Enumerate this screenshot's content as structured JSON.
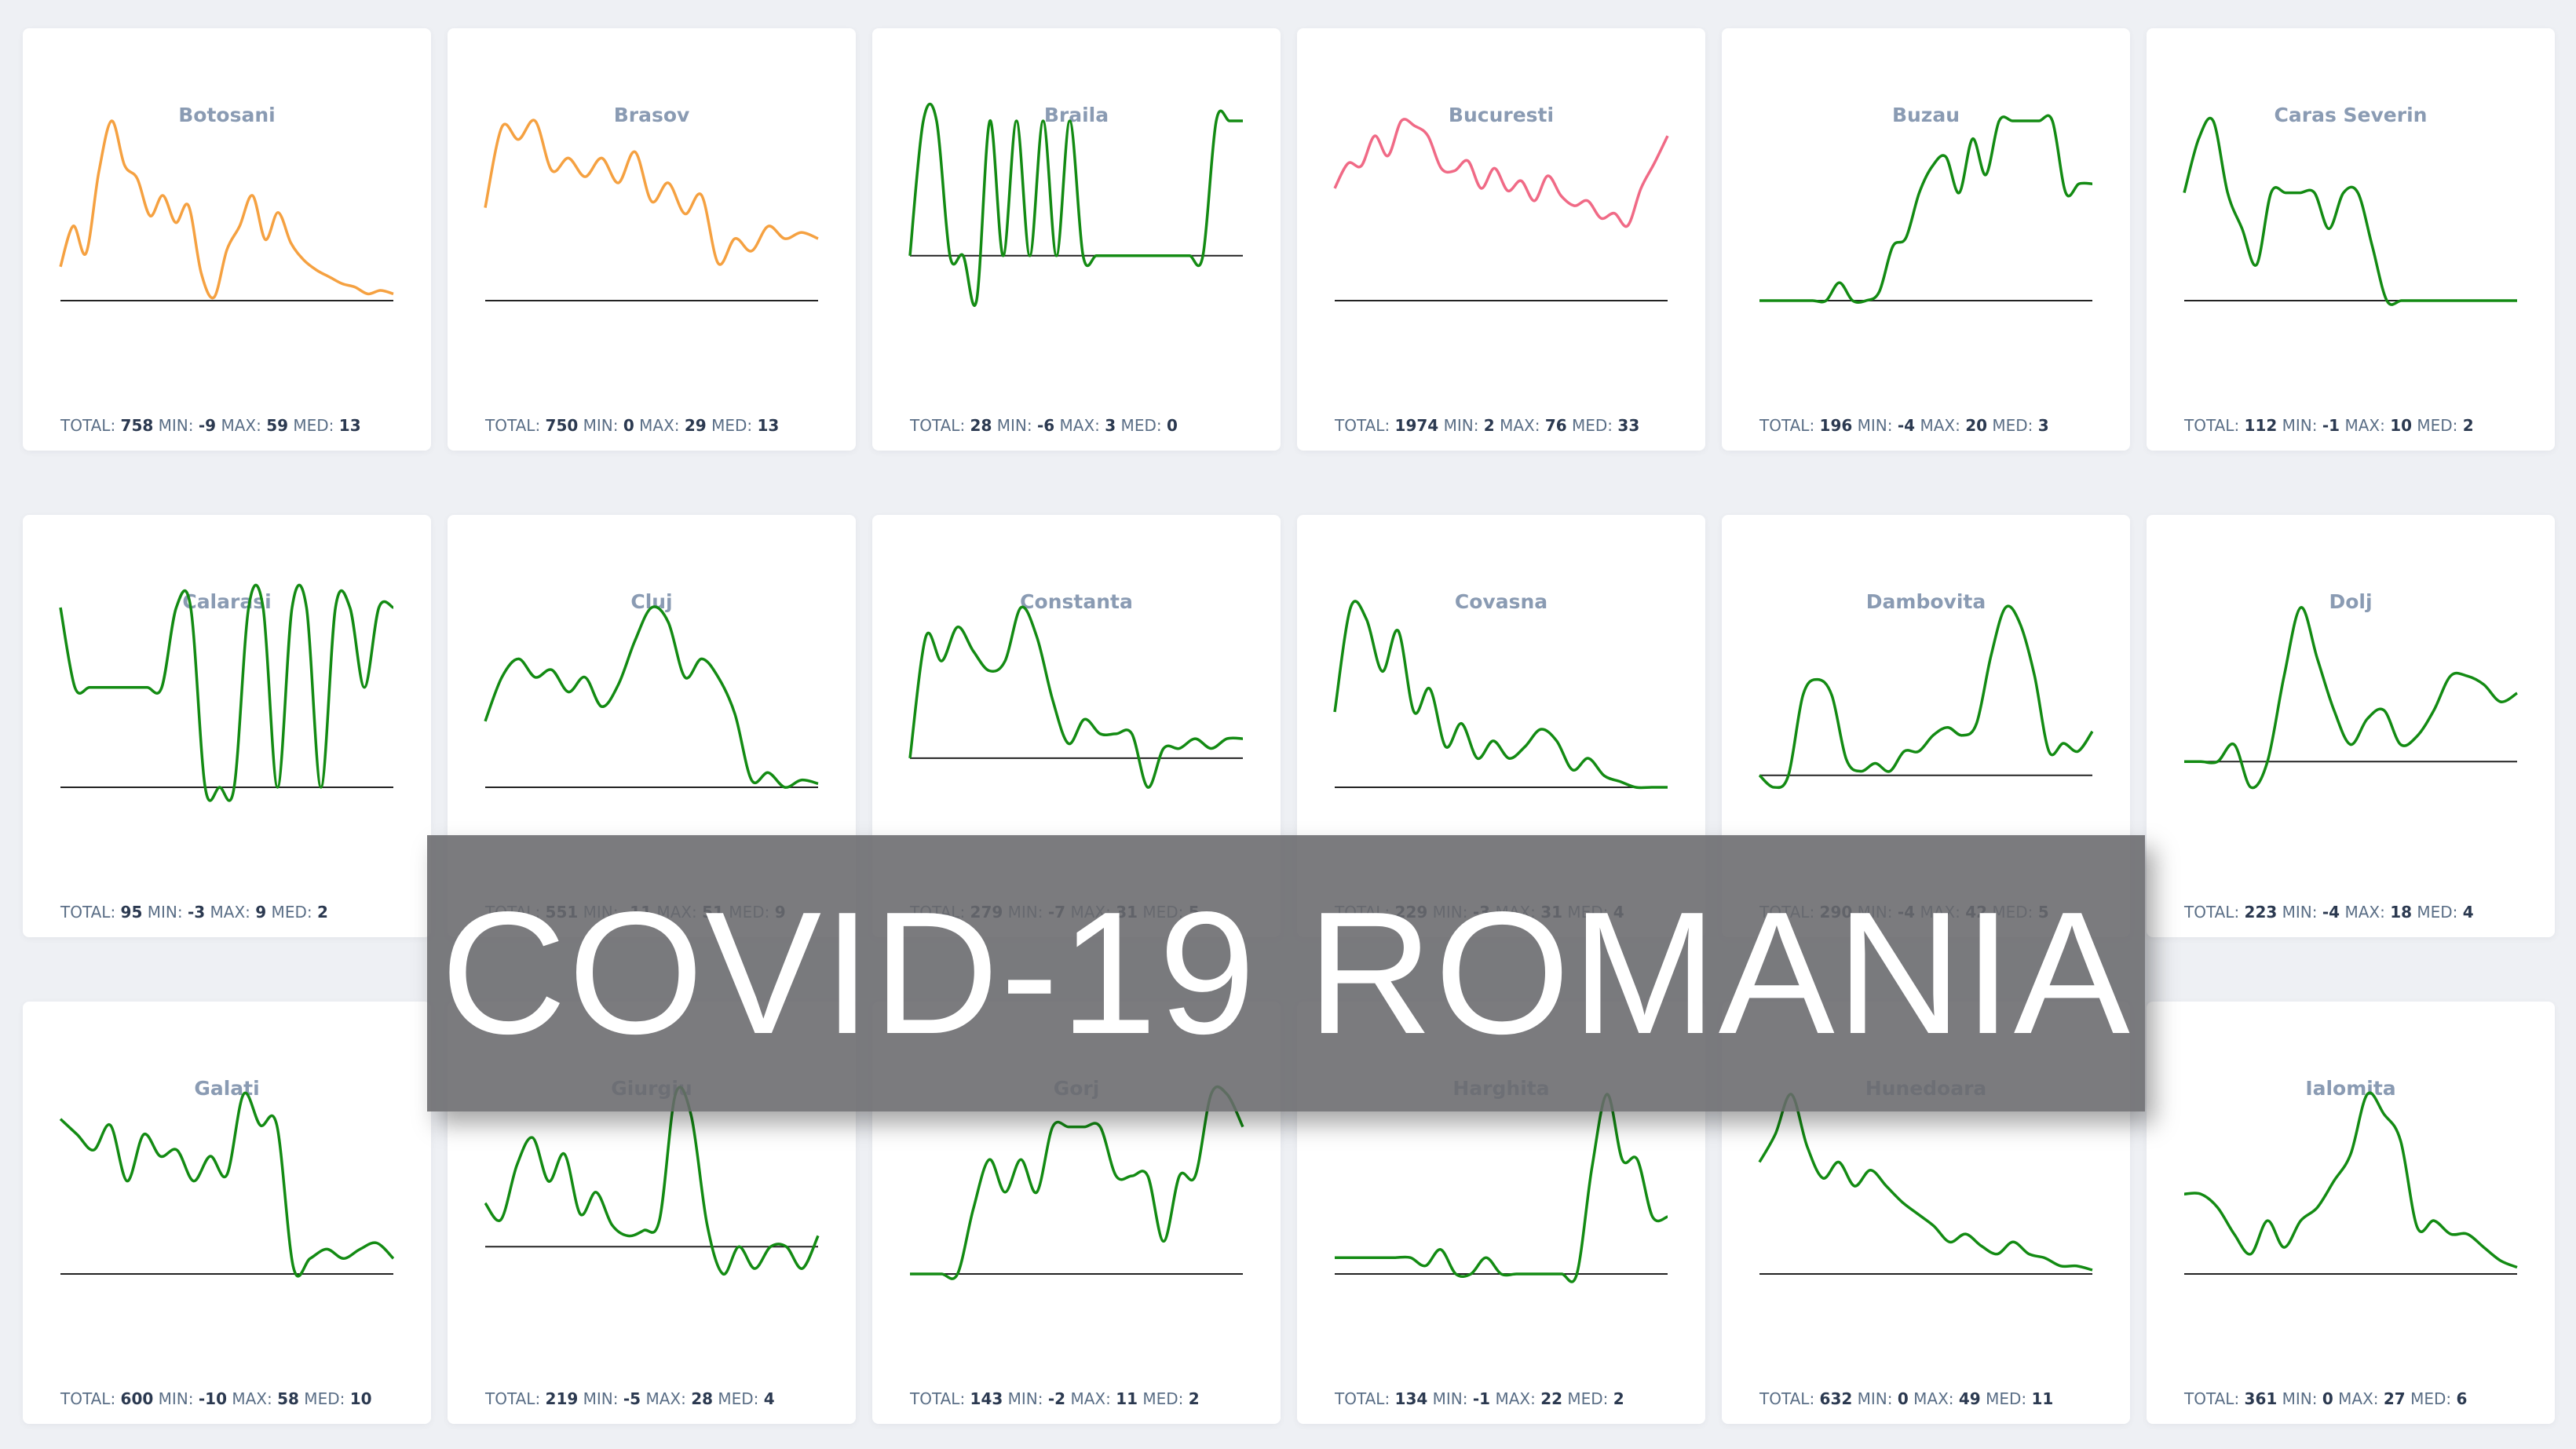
{
  "banner": {
    "text": "COVID-19 ROMANIA"
  },
  "labels": {
    "total": "TOTAL:",
    "min": "MIN:",
    "max": "MAX:",
    "med": "MED:"
  },
  "colors": {
    "orange": "#f5a141",
    "pink": "#f06a86",
    "green": "#138b13",
    "baseline": "#222222",
    "title": "#8a9bb3"
  },
  "chart_data": [
    {
      "type": "line",
      "title": "Botosani",
      "color": "orange",
      "stats": {
        "total": 758,
        "min": -9,
        "max": 59,
        "med": 13
      },
      "values": [
        10,
        22,
        14,
        38,
        53,
        40,
        36,
        25,
        31,
        23,
        28,
        8,
        1,
        15,
        22,
        31,
        18,
        26,
        17,
        12,
        9,
        7,
        5,
        4,
        2,
        3,
        2
      ]
    },
    {
      "type": "line",
      "title": "Brasov",
      "color": "orange",
      "stats": {
        "total": 750,
        "min": 0,
        "max": 29,
        "med": 13
      },
      "values": [
        15,
        28,
        26,
        29,
        21,
        23,
        20,
        23,
        19,
        24,
        16,
        19,
        14,
        17,
        6,
        10,
        8,
        12,
        10,
        11,
        10
      ]
    },
    {
      "type": "line",
      "title": "Braila",
      "color": "green",
      "stats": {
        "total": 28,
        "min": -6,
        "max": 3,
        "med": 0
      },
      "values": [
        0,
        3,
        3,
        0,
        0,
        -1,
        3,
        0,
        3,
        0,
        3,
        0,
        3,
        0,
        0,
        0,
        0,
        0,
        0,
        0,
        0,
        0,
        0,
        3,
        3,
        3
      ]
    },
    {
      "type": "line",
      "title": "Bucuresti",
      "color": "pink",
      "stats": {
        "total": 1974,
        "min": 2,
        "max": 76,
        "med": 33
      },
      "values": [
        45,
        55,
        54,
        66,
        58,
        72,
        70,
        66,
        53,
        52,
        56,
        45,
        53,
        44,
        48,
        40,
        50,
        42,
        38,
        40,
        33,
        35,
        30,
        45,
        55,
        66
      ]
    },
    {
      "type": "line",
      "title": "Buzau",
      "color": "green",
      "stats": {
        "total": 196,
        "min": -4,
        "max": 20,
        "med": 3
      },
      "values": [
        0,
        0,
        0,
        0,
        0,
        0,
        2,
        0,
        0,
        1,
        6,
        7,
        12,
        15,
        16,
        12,
        18,
        14,
        20,
        20,
        20,
        20,
        20,
        12,
        13,
        13
      ]
    },
    {
      "type": "line",
      "title": "Caras Severin",
      "color": "green",
      "stats": {
        "total": 112,
        "min": -1,
        "max": 10,
        "med": 2
      },
      "values": [
        6,
        9,
        10,
        6,
        4,
        2,
        6,
        6,
        6,
        6,
        4,
        6,
        6,
        3,
        0,
        0,
        0,
        0,
        0,
        0,
        0,
        0,
        0,
        0
      ]
    },
    {
      "type": "line",
      "title": "Calarasi",
      "color": "green",
      "stats": {
        "total": 95,
        "min": -3,
        "max": 9,
        "med": 2
      },
      "values": [
        9,
        5,
        5,
        5,
        5,
        5,
        5,
        5,
        9,
        9,
        0,
        0,
        0,
        9,
        9,
        0,
        9,
        9,
        0,
        9,
        9,
        5,
        9,
        9
      ]
    },
    {
      "type": "line",
      "title": "Cluj",
      "color": "green",
      "stats": {
        "total": 551,
        "min": -11,
        "max": 51,
        "med": 9
      },
      "values": [
        18,
        30,
        35,
        30,
        32,
        26,
        30,
        22,
        28,
        40,
        49,
        45,
        30,
        35,
        30,
        20,
        2,
        4,
        0,
        2,
        1
      ]
    },
    {
      "type": "line",
      "title": "Constanta",
      "color": "green",
      "stats": {
        "total": 279,
        "min": -7,
        "max": 31,
        "med": 5
      },
      "values": [
        0,
        25,
        20,
        27,
        22,
        18,
        20,
        31,
        25,
        12,
        3,
        8,
        5,
        5,
        5,
        -6,
        2,
        2,
        4,
        2,
        4,
        4
      ]
    },
    {
      "type": "line",
      "title": "Covasna",
      "color": "green",
      "stats": {
        "total": 229,
        "min": -3,
        "max": 31,
        "med": 4
      },
      "values": [
        13,
        31,
        29,
        20,
        27,
        13,
        17,
        7,
        11,
        5,
        8,
        5,
        7,
        10,
        8,
        3,
        5,
        2,
        1,
        0,
        0,
        0
      ]
    },
    {
      "type": "line",
      "title": "Dambovita",
      "color": "green",
      "stats": {
        "total": 290,
        "min": -4,
        "max": 42,
        "med": 5
      },
      "values": [
        0,
        -3,
        0,
        20,
        24,
        20,
        4,
        1,
        3,
        1,
        6,
        6,
        10,
        12,
        10,
        13,
        30,
        42,
        38,
        25,
        6,
        8,
        6,
        11
      ]
    },
    {
      "type": "line",
      "title": "Dolj",
      "color": "green",
      "stats": {
        "total": 223,
        "min": -4,
        "max": 18,
        "med": 4
      },
      "values": [
        0,
        0,
        0,
        2,
        -3,
        0,
        10,
        18,
        12,
        6,
        2,
        5,
        6,
        2,
        3,
        6,
        10,
        10,
        9,
        7,
        8
      ]
    },
    {
      "type": "line",
      "title": "Galati",
      "color": "green",
      "stats": {
        "total": 600,
        "min": -10,
        "max": 58,
        "med": 10
      },
      "values": [
        50,
        45,
        40,
        48,
        30,
        45,
        38,
        40,
        30,
        38,
        32,
        58,
        48,
        48,
        2,
        5,
        8,
        5,
        8,
        10,
        5
      ]
    },
    {
      "type": "line",
      "title": "Giurgiu",
      "color": "green",
      "stats": {
        "total": 219,
        "min": -5,
        "max": 28,
        "med": 4
      },
      "values": [
        8,
        5,
        15,
        20,
        12,
        17,
        6,
        10,
        4,
        2,
        3,
        5,
        28,
        24,
        4,
        -5,
        0,
        -4,
        0,
        0,
        -4,
        2
      ]
    },
    {
      "type": "line",
      "title": "Gorj",
      "color": "green",
      "stats": {
        "total": 143,
        "min": -2,
        "max": 11,
        "med": 2
      },
      "values": [
        0,
        0,
        0,
        0,
        4,
        7,
        5,
        7,
        5,
        9,
        9,
        9,
        9,
        6,
        6,
        6,
        2,
        6,
        6,
        11,
        11,
        9
      ]
    },
    {
      "type": "line",
      "title": "Harghita",
      "color": "green",
      "stats": {
        "total": 134,
        "min": -1,
        "max": 22,
        "med": 2
      },
      "values": [
        2,
        2,
        2,
        2,
        2,
        2,
        1,
        3,
        0,
        0,
        2,
        0,
        0,
        0,
        0,
        0,
        0,
        13,
        22,
        14,
        14,
        7,
        7
      ]
    },
    {
      "type": "line",
      "title": "Hunedoara",
      "color": "green",
      "stats": {
        "total": 632,
        "min": 0,
        "max": 49,
        "med": 11
      },
      "values": [
        28,
        35,
        45,
        32,
        24,
        28,
        22,
        26,
        22,
        18,
        15,
        12,
        8,
        10,
        7,
        5,
        8,
        5,
        4,
        2,
        2,
        1
      ]
    },
    {
      "type": "line",
      "title": "Ialomita",
      "color": "green",
      "stats": {
        "total": 361,
        "min": 0,
        "max": 27,
        "med": 6
      },
      "values": [
        12,
        12,
        10,
        6,
        3,
        8,
        4,
        8,
        10,
        14,
        18,
        27,
        24,
        20,
        7,
        8,
        6,
        6,
        4,
        2,
        1
      ]
    }
  ]
}
